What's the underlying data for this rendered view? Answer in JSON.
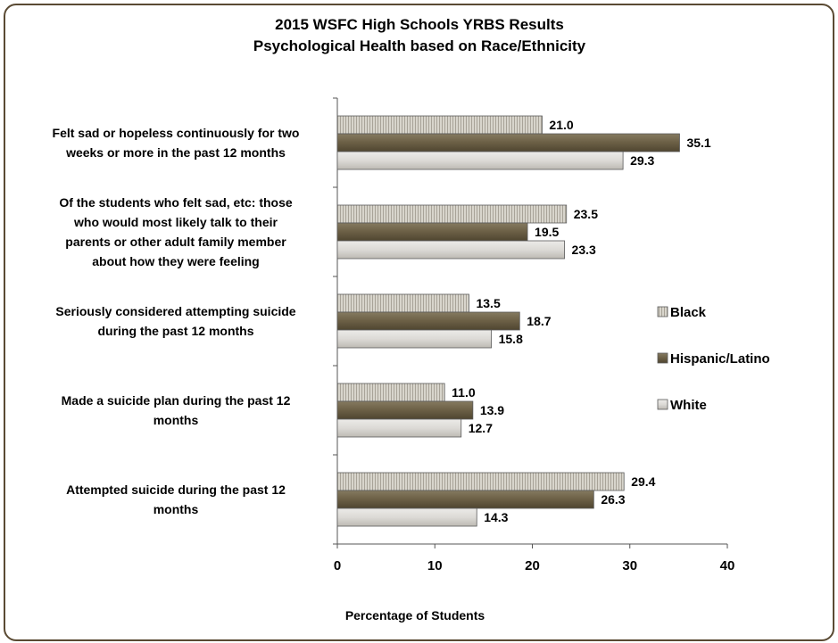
{
  "chart_data": {
    "type": "bar",
    "orientation": "horizontal",
    "title": [
      "2015 WSFC High Schools YRBS Results",
      "Psychological Health based on Race/Ethnicity"
    ],
    "xlabel": "Percentage of Students",
    "xlim": [
      0,
      40
    ],
    "xticks": [
      0,
      10,
      20,
      30,
      40
    ],
    "grid": false,
    "legend_position": "right",
    "categories": [
      [
        "Felt sad or hopeless continuously for two",
        "weeks or more in the past 12 months"
      ],
      [
        "Of the students who felt sad, etc:  those",
        "who would most likely talk to their",
        "parents or other adult family member",
        "about how they were feeling"
      ],
      [
        "Seriously considered attempting suicide",
        "during the past 12 months"
      ],
      [
        "Made a suicide plan during the past 12",
        "months"
      ],
      [
        "Attempted suicide during the past 12",
        "months"
      ]
    ],
    "series": [
      {
        "name": "Black",
        "color": "#d8d5cc",
        "values": [
          21.0,
          23.5,
          13.5,
          11.0,
          29.4
        ],
        "labels": [
          "21.0",
          "23.5",
          "13.5",
          "11.0",
          "29.4"
        ]
      },
      {
        "name": "Hispanic/Latino",
        "color": "#6b5f45",
        "values": [
          35.1,
          19.5,
          18.7,
          13.9,
          26.3
        ],
        "labels": [
          "35.1",
          "19.5",
          "18.7",
          "13.9",
          "26.3"
        ]
      },
      {
        "name": "White",
        "color": "#dcdad6",
        "values": [
          29.3,
          23.3,
          15.8,
          12.7,
          14.3
        ],
        "labels": [
          "29.3",
          "23.3",
          "15.8",
          "12.7",
          "14.3"
        ]
      }
    ]
  }
}
